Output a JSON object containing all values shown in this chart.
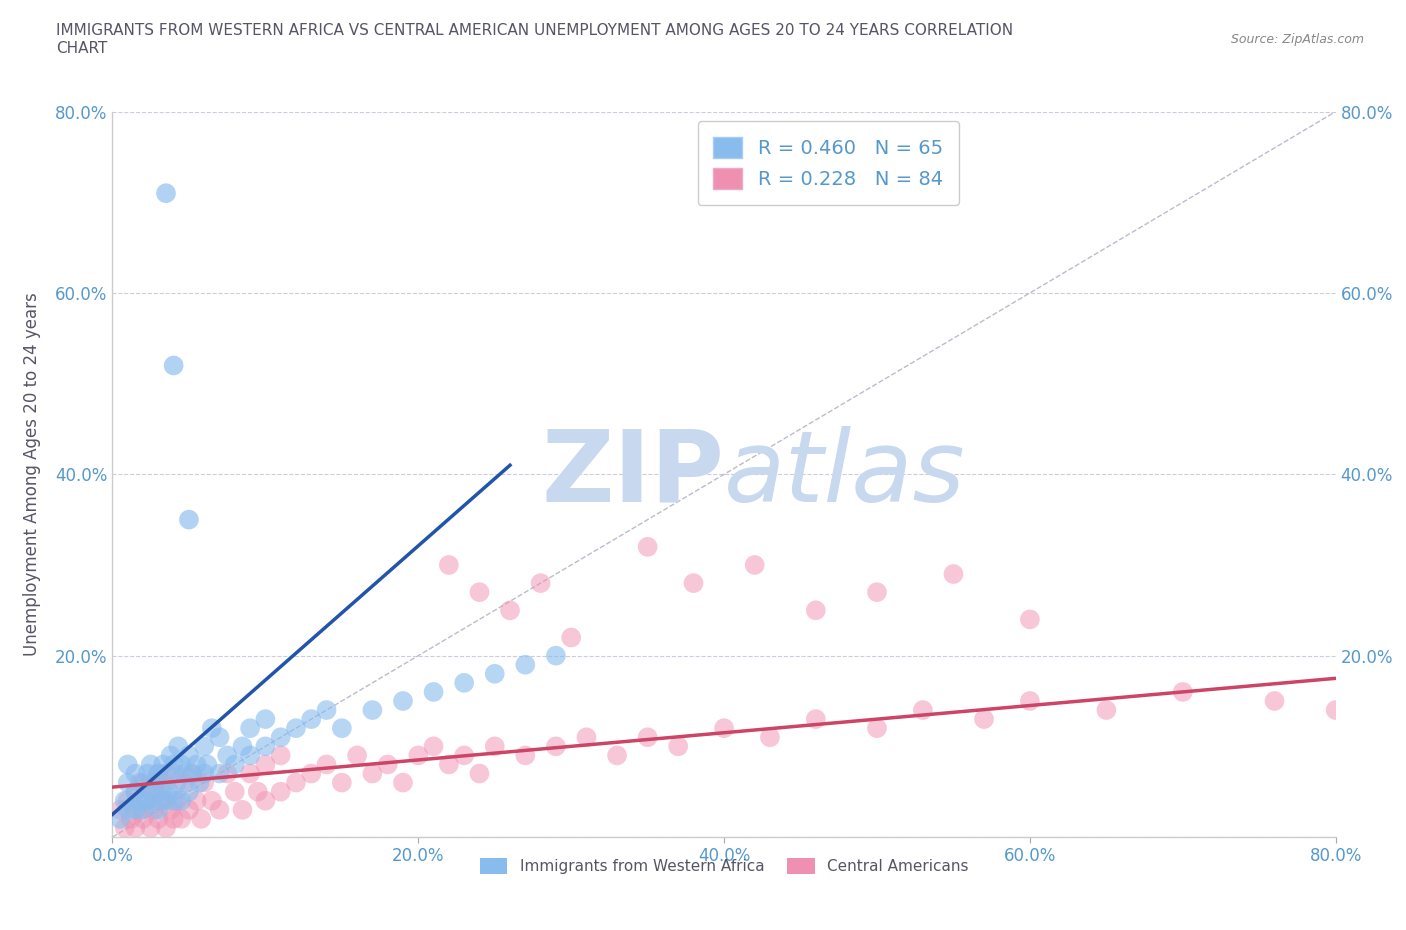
{
  "title": "IMMIGRANTS FROM WESTERN AFRICA VS CENTRAL AMERICAN UNEMPLOYMENT AMONG AGES 20 TO 24 YEARS CORRELATION\nCHART",
  "source": "Source: ZipAtlas.com",
  "ylabel": "Unemployment Among Ages 20 to 24 years",
  "xlim": [
    0,
    0.8
  ],
  "ylim": [
    0,
    0.8
  ],
  "xticks": [
    0.0,
    0.2,
    0.4,
    0.6,
    0.8
  ],
  "yticks": [
    0.0,
    0.2,
    0.4,
    0.6,
    0.8
  ],
  "xtick_labels": [
    "0.0%",
    "20.0%",
    "40.0%",
    "60.0%",
    "80.0%"
  ],
  "ytick_labels": [
    "",
    "20.0%",
    "40.0%",
    "60.0%",
    "80.0%"
  ],
  "blue_R": 0.46,
  "blue_N": 65,
  "pink_R": 0.228,
  "pink_N": 84,
  "blue_color": "#88bbee",
  "pink_color": "#f090b0",
  "blue_line_color": "#2255aa",
  "pink_line_color": "#cc4466",
  "ref_line_color": "#bbbbcc",
  "grid_color": "#ccccdd",
  "title_color": "#555566",
  "tick_color": "#5599cc",
  "watermark_zip": "ZIP",
  "watermark_atlas": "atlas",
  "watermark_color": "#c8d8ee",
  "figsize": [
    14.06,
    9.3
  ],
  "dpi": 100,
  "blue_scatter_x": [
    0.005,
    0.008,
    0.01,
    0.01,
    0.01,
    0.015,
    0.015,
    0.015,
    0.018,
    0.02,
    0.02,
    0.022,
    0.023,
    0.025,
    0.025,
    0.027,
    0.028,
    0.03,
    0.03,
    0.032,
    0.033,
    0.035,
    0.035,
    0.037,
    0.038,
    0.04,
    0.04,
    0.042,
    0.043,
    0.045,
    0.045,
    0.047,
    0.05,
    0.05,
    0.052,
    0.055,
    0.057,
    0.06,
    0.06,
    0.062,
    0.065,
    0.07,
    0.07,
    0.075,
    0.08,
    0.085,
    0.09,
    0.09,
    0.1,
    0.1,
    0.11,
    0.12,
    0.13,
    0.14,
    0.15,
    0.17,
    0.19,
    0.21,
    0.23,
    0.25,
    0.27,
    0.29
  ],
  "blue_scatter_y": [
    0.02,
    0.04,
    0.03,
    0.06,
    0.08,
    0.03,
    0.05,
    0.07,
    0.04,
    0.03,
    0.06,
    0.04,
    0.07,
    0.05,
    0.08,
    0.04,
    0.06,
    0.03,
    0.07,
    0.05,
    0.08,
    0.04,
    0.07,
    0.05,
    0.09,
    0.04,
    0.08,
    0.06,
    0.1,
    0.04,
    0.08,
    0.07,
    0.05,
    0.09,
    0.07,
    0.08,
    0.06,
    0.07,
    0.1,
    0.08,
    0.12,
    0.07,
    0.11,
    0.09,
    0.08,
    0.1,
    0.09,
    0.12,
    0.1,
    0.13,
    0.11,
    0.12,
    0.13,
    0.14,
    0.12,
    0.14,
    0.15,
    0.16,
    0.17,
    0.18,
    0.19,
    0.2
  ],
  "blue_outlier1_x": [
    0.035
  ],
  "blue_outlier1_y": [
    0.71
  ],
  "blue_outlier2_x": [
    0.04
  ],
  "blue_outlier2_y": [
    0.52
  ],
  "blue_outlier3_x": [
    0.05
  ],
  "blue_outlier3_y": [
    0.35
  ],
  "blue_line_x": [
    0.0,
    0.26
  ],
  "blue_line_y": [
    0.025,
    0.41
  ],
  "pink_scatter_x": [
    0.005,
    0.008,
    0.01,
    0.012,
    0.015,
    0.015,
    0.017,
    0.018,
    0.02,
    0.022,
    0.025,
    0.025,
    0.027,
    0.028,
    0.03,
    0.03,
    0.032,
    0.035,
    0.035,
    0.038,
    0.04,
    0.04,
    0.042,
    0.045,
    0.047,
    0.05,
    0.052,
    0.055,
    0.058,
    0.06,
    0.065,
    0.07,
    0.075,
    0.08,
    0.085,
    0.09,
    0.095,
    0.1,
    0.1,
    0.11,
    0.11,
    0.12,
    0.13,
    0.14,
    0.15,
    0.16,
    0.17,
    0.18,
    0.19,
    0.2,
    0.21,
    0.22,
    0.23,
    0.24,
    0.25,
    0.27,
    0.29,
    0.31,
    0.33,
    0.35,
    0.37,
    0.4,
    0.43,
    0.46,
    0.5,
    0.53,
    0.57,
    0.6,
    0.65,
    0.7,
    0.76,
    0.8,
    0.22,
    0.24,
    0.26,
    0.28,
    0.3,
    0.35,
    0.38,
    0.42,
    0.46,
    0.5,
    0.55,
    0.6
  ],
  "pink_scatter_y": [
    0.03,
    0.01,
    0.04,
    0.02,
    0.01,
    0.05,
    0.03,
    0.06,
    0.02,
    0.04,
    0.01,
    0.06,
    0.03,
    0.05,
    0.02,
    0.07,
    0.04,
    0.01,
    0.06,
    0.03,
    0.02,
    0.07,
    0.04,
    0.02,
    0.06,
    0.03,
    0.07,
    0.04,
    0.02,
    0.06,
    0.04,
    0.03,
    0.07,
    0.05,
    0.03,
    0.07,
    0.05,
    0.04,
    0.08,
    0.05,
    0.09,
    0.06,
    0.07,
    0.08,
    0.06,
    0.09,
    0.07,
    0.08,
    0.06,
    0.09,
    0.1,
    0.08,
    0.09,
    0.07,
    0.1,
    0.09,
    0.1,
    0.11,
    0.09,
    0.11,
    0.1,
    0.12,
    0.11,
    0.13,
    0.12,
    0.14,
    0.13,
    0.15,
    0.14,
    0.16,
    0.15,
    0.14,
    0.3,
    0.27,
    0.25,
    0.28,
    0.22,
    0.32,
    0.28,
    0.3,
    0.25,
    0.27,
    0.29,
    0.24
  ],
  "pink_line_x": [
    0.0,
    0.8
  ],
  "pink_line_y": [
    0.055,
    0.175
  ],
  "ref_line_x": [
    0.0,
    0.8
  ],
  "ref_line_y": [
    0.0,
    0.8
  ]
}
